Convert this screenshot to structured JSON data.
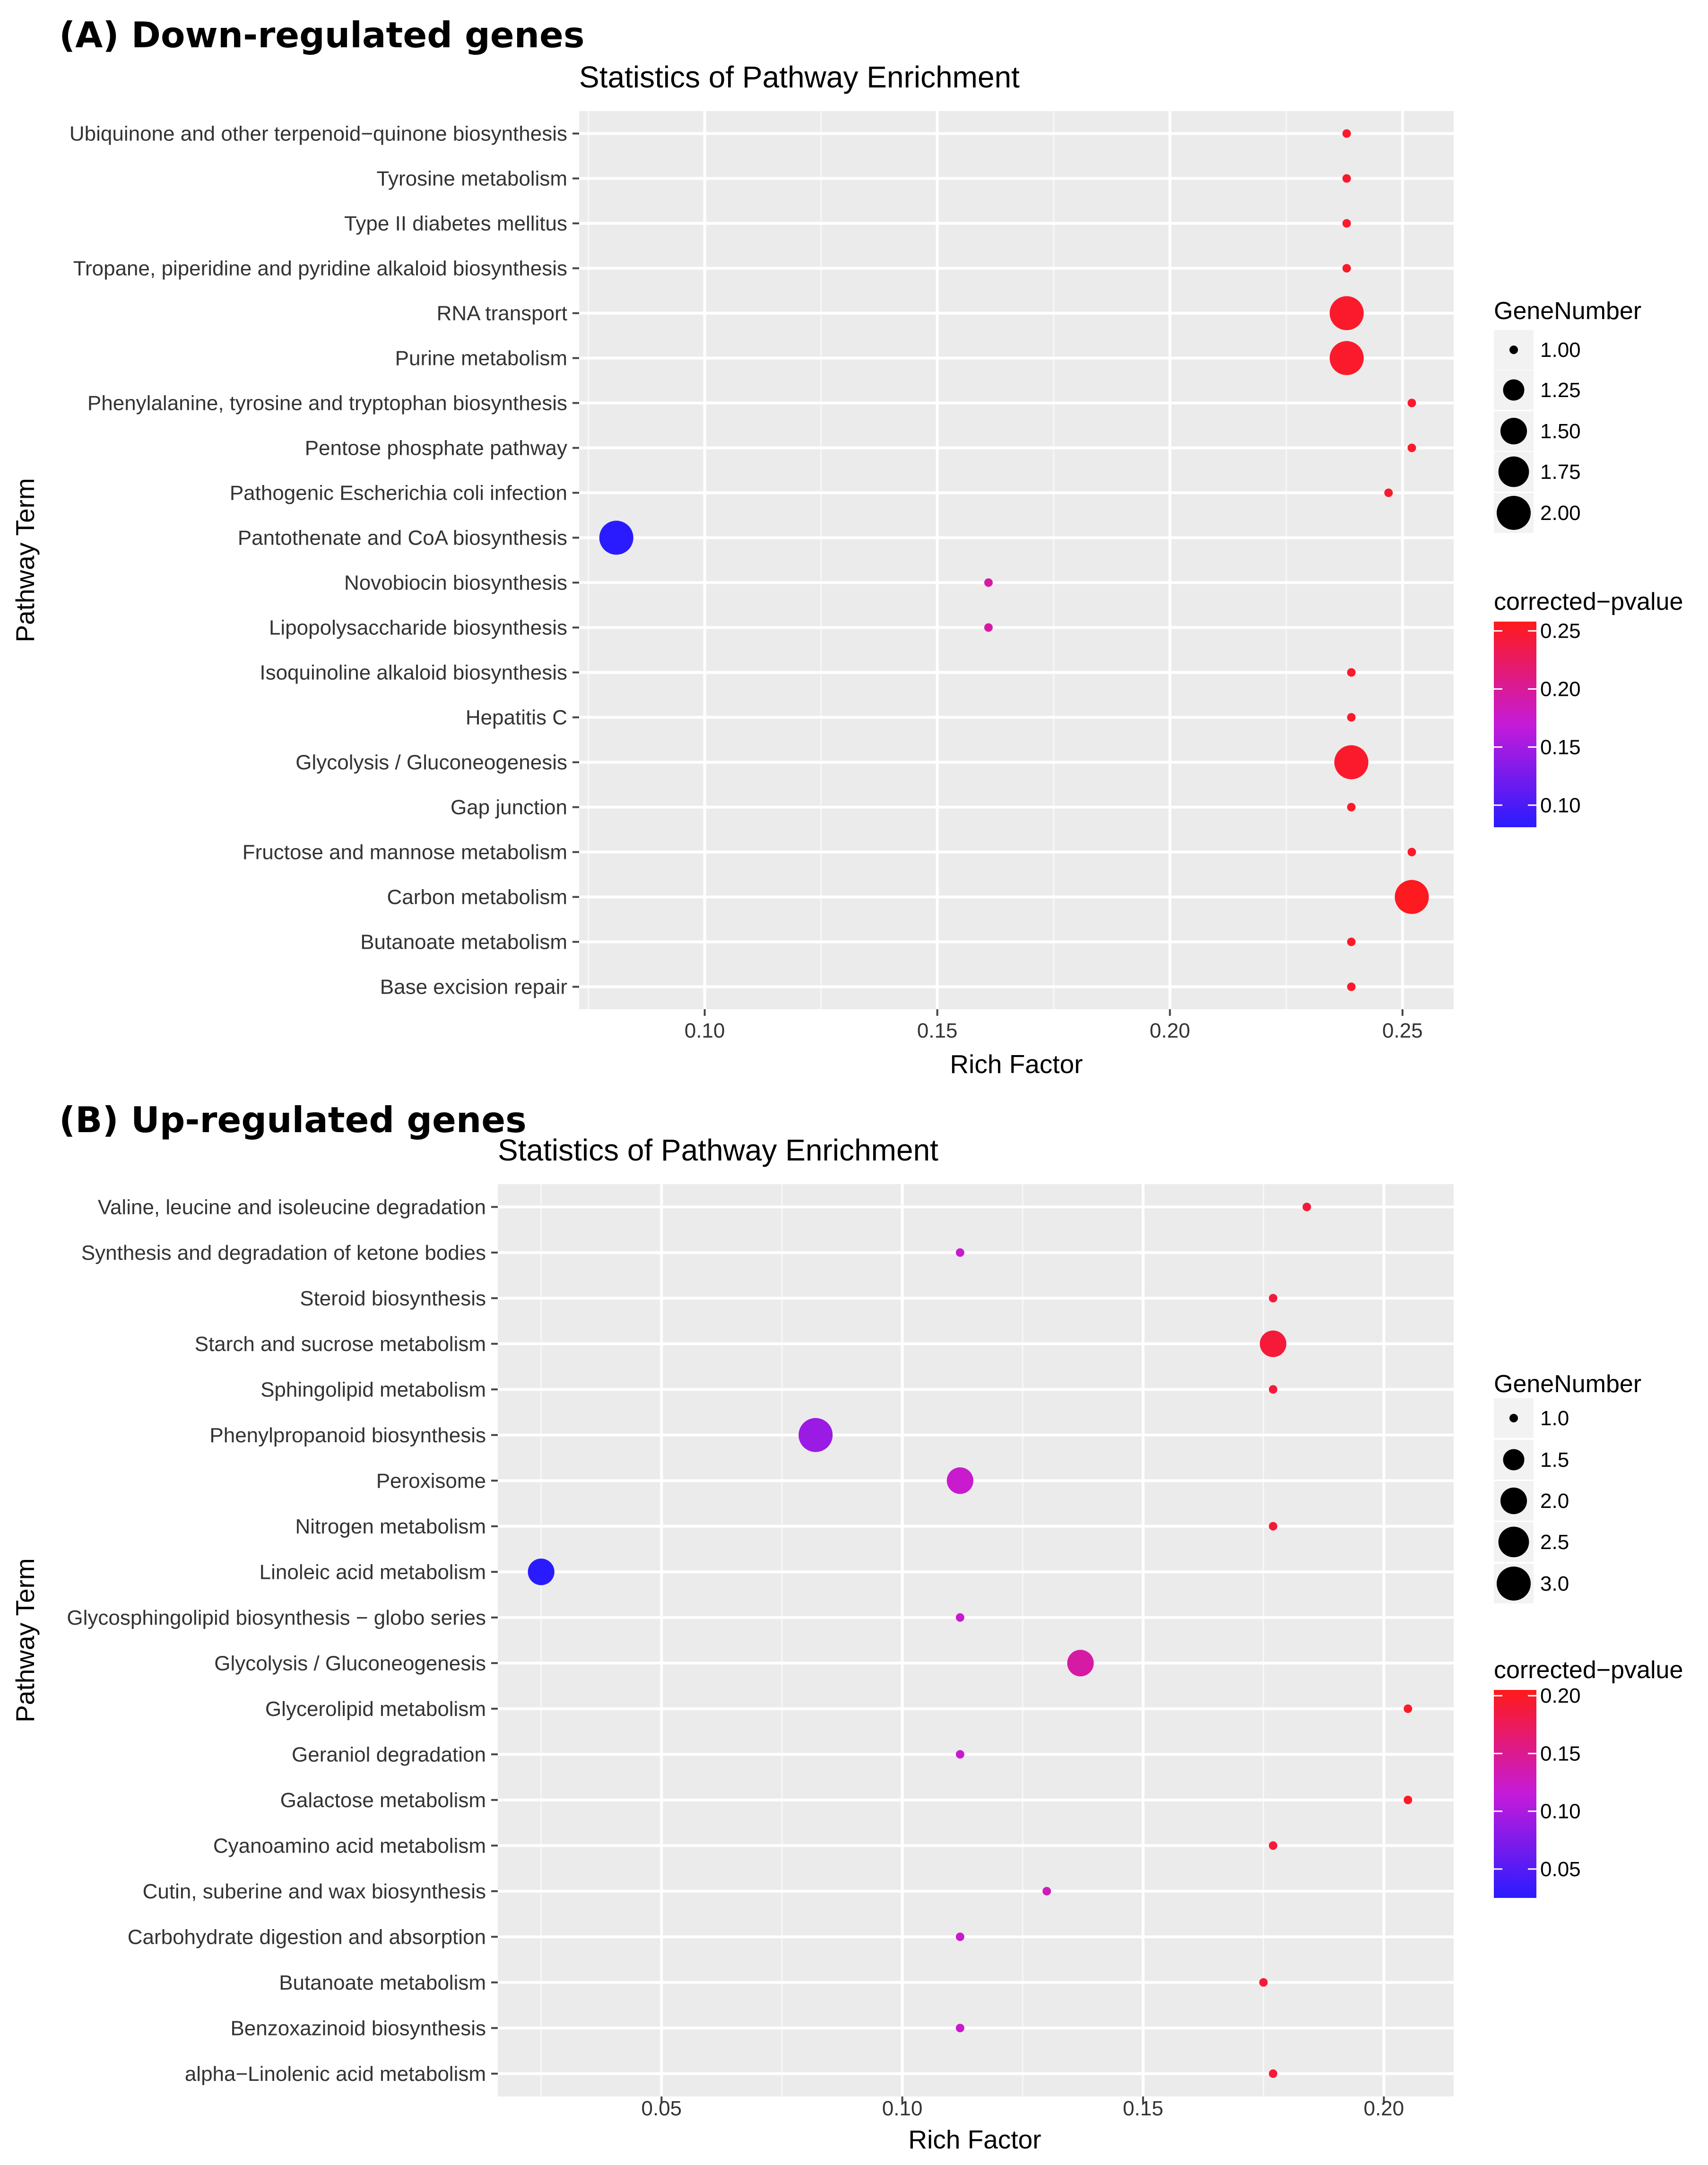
{
  "chart_data": [
    {
      "type": "scatter",
      "panel_label": "(A) Down-regulated genes",
      "title": "Statistics of Pathway Enrichment",
      "xlabel": "Rich Factor",
      "ylabel": "Pathway Term",
      "xlim": [
        0.073,
        0.261
      ],
      "xticks": [
        0.1,
        0.15,
        0.2,
        0.25
      ],
      "xtick_labels": [
        "0.10",
        "0.15",
        "0.20",
        "0.25"
      ],
      "size_legend_title": "GeneNumber",
      "size_range": [
        1,
        2
      ],
      "size_legend_values": [
        1.0,
        1.25,
        1.5,
        1.75,
        2.0
      ],
      "size_legend_labels": [
        "1.00",
        "1.25",
        "1.50",
        "1.75",
        "2.00"
      ],
      "color_legend_title": "corrected−pvalue",
      "color_range": [
        0.081,
        0.258
      ],
      "color_legend_values": [
        0.25,
        0.2,
        0.15,
        0.1
      ],
      "color_legend_labels": [
        "0.25",
        "0.20",
        "0.15",
        "0.10"
      ],
      "low_color": "#2a1bff",
      "high_color": "#ff1a1a",
      "terms": [
        {
          "name": "Ubiquinone and other terpenoid−quinone biosynthesis",
          "rich_factor": 0.238,
          "gene_number": 1,
          "pvalue": 0.25
        },
        {
          "name": "Tyrosine metabolism",
          "rich_factor": 0.238,
          "gene_number": 1,
          "pvalue": 0.25
        },
        {
          "name": "Type II diabetes mellitus",
          "rich_factor": 0.238,
          "gene_number": 1,
          "pvalue": 0.25
        },
        {
          "name": "Tropane, piperidine and pyridine alkaloid biosynthesis",
          "rich_factor": 0.238,
          "gene_number": 1,
          "pvalue": 0.25
        },
        {
          "name": "RNA transport",
          "rich_factor": 0.238,
          "gene_number": 2,
          "pvalue": 0.25
        },
        {
          "name": "Purine metabolism",
          "rich_factor": 0.238,
          "gene_number": 2,
          "pvalue": 0.25
        },
        {
          "name": "Phenylalanine, tyrosine and tryptophan biosynthesis",
          "rich_factor": 0.252,
          "gene_number": 1,
          "pvalue": 0.25
        },
        {
          "name": "Pentose phosphate pathway",
          "rich_factor": 0.252,
          "gene_number": 1,
          "pvalue": 0.25
        },
        {
          "name": "Pathogenic Escherichia coli infection",
          "rich_factor": 0.247,
          "gene_number": 1,
          "pvalue": 0.25
        },
        {
          "name": "Pantothenate and CoA biosynthesis",
          "rich_factor": 0.081,
          "gene_number": 2,
          "pvalue": 0.081
        },
        {
          "name": "Novobiocin biosynthesis",
          "rich_factor": 0.161,
          "gene_number": 1,
          "pvalue": 0.195
        },
        {
          "name": "Lipopolysaccharide biosynthesis",
          "rich_factor": 0.161,
          "gene_number": 1,
          "pvalue": 0.195
        },
        {
          "name": "Isoquinoline alkaloid biosynthesis",
          "rich_factor": 0.239,
          "gene_number": 1,
          "pvalue": 0.25
        },
        {
          "name": "Hepatitis C",
          "rich_factor": 0.239,
          "gene_number": 1,
          "pvalue": 0.25
        },
        {
          "name": "Glycolysis / Gluconeogenesis",
          "rich_factor": 0.239,
          "gene_number": 2,
          "pvalue": 0.25
        },
        {
          "name": "Gap junction",
          "rich_factor": 0.239,
          "gene_number": 1,
          "pvalue": 0.25
        },
        {
          "name": "Fructose and mannose metabolism",
          "rich_factor": 0.252,
          "gene_number": 1,
          "pvalue": 0.25
        },
        {
          "name": "Carbon metabolism",
          "rich_factor": 0.252,
          "gene_number": 2,
          "pvalue": 0.255
        },
        {
          "name": "Butanoate metabolism",
          "rich_factor": 0.239,
          "gene_number": 1,
          "pvalue": 0.25
        },
        {
          "name": "Base excision repair",
          "rich_factor": 0.239,
          "gene_number": 1,
          "pvalue": 0.25
        }
      ]
    },
    {
      "type": "scatter",
      "panel_label": "(B) Up-regulated genes",
      "title": "Statistics of Pathway Enrichment",
      "xlabel": "Rich Factor",
      "ylabel": "Pathway Term",
      "xlim": [
        0.016,
        0.2145
      ],
      "xticks": [
        0.05,
        0.1,
        0.15,
        0.2
      ],
      "xtick_labels": [
        "0.05",
        "0.10",
        "0.15",
        "0.20"
      ],
      "size_legend_title": "GeneNumber",
      "size_range": [
        1,
        3
      ],
      "size_legend_values": [
        1.0,
        1.5,
        2.0,
        2.5,
        3.0
      ],
      "size_legend_labels": [
        "1.0",
        "1.5",
        "2.0",
        "2.5",
        "3.0"
      ],
      "color_legend_title": "corrected−pvalue",
      "color_range": [
        0.025,
        0.205
      ],
      "color_legend_values": [
        0.2,
        0.15,
        0.1,
        0.05
      ],
      "color_legend_labels": [
        "0.20",
        "0.15",
        "0.10",
        "0.05"
      ],
      "low_color": "#2a1bff",
      "high_color": "#ff1a1a",
      "terms": [
        {
          "name": "Valine, leucine and isoleucine degradation",
          "rich_factor": 0.184,
          "gene_number": 1,
          "pvalue": 0.19
        },
        {
          "name": "Synthesis and degradation of ketone bodies",
          "rich_factor": 0.112,
          "gene_number": 1,
          "pvalue": 0.12
        },
        {
          "name": "Steroid biosynthesis",
          "rich_factor": 0.177,
          "gene_number": 1,
          "pvalue": 0.19
        },
        {
          "name": "Starch and sucrose metabolism",
          "rich_factor": 0.177,
          "gene_number": 2,
          "pvalue": 0.19
        },
        {
          "name": "Sphingolipid metabolism",
          "rich_factor": 0.177,
          "gene_number": 1,
          "pvalue": 0.19
        },
        {
          "name": "Phenylpropanoid biosynthesis",
          "rich_factor": 0.082,
          "gene_number": 3,
          "pvalue": 0.09
        },
        {
          "name": "Peroxisome",
          "rich_factor": 0.112,
          "gene_number": 2,
          "pvalue": 0.12
        },
        {
          "name": "Nitrogen metabolism",
          "rich_factor": 0.177,
          "gene_number": 1,
          "pvalue": 0.19
        },
        {
          "name": "Linoleic acid metabolism",
          "rich_factor": 0.025,
          "gene_number": 2,
          "pvalue": 0.025
        },
        {
          "name": "Glycosphingolipid biosynthesis − globo series",
          "rich_factor": 0.112,
          "gene_number": 1,
          "pvalue": 0.12
        },
        {
          "name": "Glycolysis / Gluconeogenesis",
          "rich_factor": 0.137,
          "gene_number": 2,
          "pvalue": 0.14
        },
        {
          "name": "Glycerolipid metabolism",
          "rich_factor": 0.205,
          "gene_number": 1,
          "pvalue": 0.2
        },
        {
          "name": "Geraniol degradation",
          "rich_factor": 0.112,
          "gene_number": 1,
          "pvalue": 0.12
        },
        {
          "name": "Galactose metabolism",
          "rich_factor": 0.205,
          "gene_number": 1,
          "pvalue": 0.2
        },
        {
          "name": "Cyanoamino acid metabolism",
          "rich_factor": 0.177,
          "gene_number": 1,
          "pvalue": 0.19
        },
        {
          "name": "Cutin, suberine and wax biosynthesis",
          "rich_factor": 0.13,
          "gene_number": 1,
          "pvalue": 0.13
        },
        {
          "name": "Carbohydrate digestion and absorption",
          "rich_factor": 0.112,
          "gene_number": 1,
          "pvalue": 0.12
        },
        {
          "name": "Butanoate metabolism",
          "rich_factor": 0.175,
          "gene_number": 1,
          "pvalue": 0.19
        },
        {
          "name": "Benzoxazinoid biosynthesis",
          "rich_factor": 0.112,
          "gene_number": 1,
          "pvalue": 0.12
        },
        {
          "name": "alpha−Linolenic acid metabolism",
          "rich_factor": 0.177,
          "gene_number": 1,
          "pvalue": 0.19
        }
      ]
    }
  ]
}
